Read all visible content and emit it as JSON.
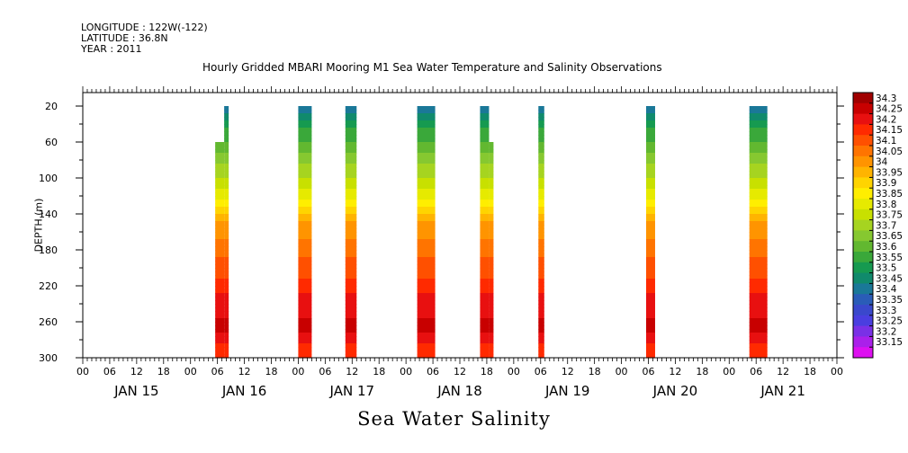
{
  "header": {
    "longitude": "LONGITUDE : 122W(-122)",
    "latitude": "LATITUDE : 36.8N",
    "year": "YEAR : 2011"
  },
  "chart_data": {
    "type": "heatmap",
    "title": "Hourly Gridded MBARI Mooring M1 Sea Water Temperature and Salinity Observations",
    "xlabel": "Sea Water Salinity",
    "ylabel": "DEPTH (m)",
    "y_ticks": [
      20,
      60,
      100,
      140,
      180,
      220,
      260,
      300
    ],
    "ylim": [
      300,
      5
    ],
    "x_hour_ticks": [
      "00",
      "06",
      "12",
      "18",
      "00",
      "06",
      "12",
      "18",
      "00",
      "06",
      "12",
      "18",
      "00",
      "06",
      "12",
      "18",
      "00",
      "06",
      "12",
      "18",
      "00",
      "06",
      "12",
      "18",
      "00",
      "06",
      "12",
      "18",
      "00"
    ],
    "x_day_labels": [
      "JAN 15",
      "JAN 16",
      "JAN 17",
      "JAN 18",
      "JAN 19",
      "JAN 20",
      "JAN 21"
    ],
    "xlim_hours": [
      0,
      168
    ],
    "colorbar": {
      "levels": [
        "34.3",
        "34.25",
        "34.2",
        "34.15",
        "34.1",
        "34.05",
        "34",
        "33.95",
        "33.9",
        "33.85",
        "33.8",
        "33.75",
        "33.7",
        "33.65",
        "33.6",
        "33.55",
        "33.5",
        "33.45",
        "33.4",
        "33.35",
        "33.3",
        "33.25",
        "33.2",
        "33.15"
      ],
      "colors": [
        "#a00000",
        "#c80000",
        "#e81010",
        "#ff2a00",
        "#ff5000",
        "#ff7400",
        "#ff9400",
        "#ffb400",
        "#ffd400",
        "#ffee00",
        "#e6ea00",
        "#c8e000",
        "#a6d420",
        "#86c830",
        "#62b830",
        "#3aa83a",
        "#169a50",
        "#108a6c",
        "#1a7898",
        "#2a5cb8",
        "#3a48cc",
        "#4a3ee0",
        "#7a30e6",
        "#aa20ea",
        "#dd10f0"
      ]
    },
    "profile": [
      {
        "depth": 20,
        "value": 33.4
      },
      {
        "depth": 40,
        "value": 33.53
      },
      {
        "depth": 60,
        "value": 33.6
      },
      {
        "depth": 80,
        "value": 33.68
      },
      {
        "depth": 100,
        "value": 33.75
      },
      {
        "depth": 120,
        "value": 33.83
      },
      {
        "depth": 135,
        "value": 33.92
      },
      {
        "depth": 150,
        "value": 34.0
      },
      {
        "depth": 170,
        "value": 34.06
      },
      {
        "depth": 200,
        "value": 34.12
      },
      {
        "depth": 220,
        "value": 34.17
      },
      {
        "depth": 240,
        "value": 34.24
      },
      {
        "depth": 270,
        "value": 34.26
      },
      {
        "depth": 290,
        "value": 34.18
      },
      {
        "depth": 300,
        "value": 34.15
      }
    ],
    "observation_columns": [
      {
        "start_hour": 29.5,
        "end_hour": 32.5,
        "top_depth": 60,
        "top_step": {
          "start_hour": 31.5,
          "depth": 20
        }
      },
      {
        "start_hour": 48.0,
        "end_hour": 51.0,
        "top_depth": 20
      },
      {
        "start_hour": 58.5,
        "end_hour": 61.0,
        "top_depth": 20
      },
      {
        "start_hour": 74.5,
        "end_hour": 78.5,
        "top_depth": 20
      },
      {
        "start_hour": 88.5,
        "end_hour": 91.5,
        "top_depth": 20,
        "top_step": {
          "start_hour": 90.5,
          "depth": 60
        }
      },
      {
        "start_hour": 101.5,
        "end_hour": 102.8,
        "top_depth": 20
      },
      {
        "start_hour": 125.5,
        "end_hour": 127.5,
        "top_depth": 20
      },
      {
        "start_hour": 148.5,
        "end_hour": 152.5,
        "top_depth": 20
      }
    ]
  }
}
